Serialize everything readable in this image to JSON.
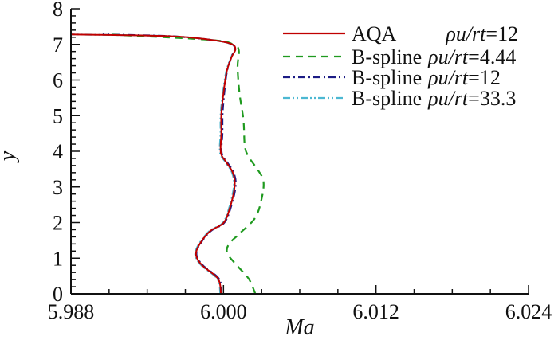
{
  "chart_data": {
    "type": "line",
    "title": "",
    "xlabel": "Ma",
    "ylabel": "y",
    "xlim": [
      5.988,
      6.024
    ],
    "ylim": [
      0,
      8
    ],
    "xticks": [
      "5.988",
      "6.000",
      "6.012",
      "6.024"
    ],
    "xtick_values": [
      5.988,
      6.0,
      6.012,
      6.024
    ],
    "yticks": [
      "0",
      "1",
      "2",
      "3",
      "4",
      "5",
      "6",
      "7",
      "8"
    ],
    "grid": false,
    "legend_position": "top-right",
    "series": [
      {
        "name": "AQA",
        "param_symbol": "ρu/rt",
        "param_value": "12",
        "color": "#c00000",
        "style": "solid",
        "x": [
          5.9998,
          5.99958,
          5.99832,
          5.99784,
          5.99812,
          5.99895,
          6.0,
          6.00052,
          6.00088,
          6.00073,
          6.00021,
          5.99979,
          5.99983,
          5.99983,
          6.0,
          6.00025,
          6.00063,
          6.00094,
          6.00063,
          5.99916,
          5.99581,
          5.988
        ],
        "y": [
          0,
          0.42,
          0.8,
          1.09,
          1.39,
          1.76,
          1.99,
          2.43,
          3.03,
          3.4,
          3.7,
          3.96,
          4.52,
          5.04,
          5.63,
          6.23,
          6.64,
          6.86,
          7.01,
          7.12,
          7.23,
          7.28
        ]
      },
      {
        "name": "B-spline",
        "param_symbol": "ρu/rt",
        "param_value": "4.44",
        "color": "#1f9a1f",
        "style": "dashed",
        "x": [
          6.00251,
          6.00199,
          6.00105,
          6.00031,
          6.00042,
          6.00126,
          6.00251,
          6.00304,
          6.00314,
          6.00272,
          6.00199,
          6.00168,
          6.00157,
          6.00126,
          6.00111,
          6.00121,
          6.00084,
          5.99916,
          5.9908
        ],
        "y": [
          0,
          0.42,
          0.8,
          1.13,
          1.39,
          1.69,
          2.14,
          2.73,
          3.17,
          3.47,
          3.84,
          4.14,
          4.88,
          5.63,
          6.37,
          6.82,
          6.97,
          7.12,
          7.28
        ]
      },
      {
        "name": "B-spline",
        "param_symbol": "ρu/rt",
        "param_value": "12",
        "color": "#1c1c85",
        "style": "dashdot",
        "x": [
          5.99985,
          5.99965,
          5.99838,
          5.99788,
          5.99815,
          5.99899,
          6.00005,
          6.00058,
          6.00096,
          6.0008,
          6.00028,
          5.99986,
          5.99992,
          5.99993,
          6.00006,
          6.00027,
          6.00062,
          6.00088,
          6.00063,
          5.99916,
          5.99581,
          5.9905
        ],
        "y": [
          0,
          0.42,
          0.8,
          1.09,
          1.39,
          1.76,
          1.99,
          2.43,
          3.03,
          3.4,
          3.7,
          3.96,
          4.52,
          5.04,
          5.63,
          6.23,
          6.64,
          6.86,
          7.01,
          7.12,
          7.23,
          7.28
        ]
      },
      {
        "name": "B-spline",
        "param_symbol": "ρu/rt",
        "param_value": "33.3",
        "color": "#4cb8d2",
        "style": "dashdotdot",
        "x": [
          5.99975,
          5.99952,
          5.99826,
          5.99778,
          5.99806,
          5.99889,
          5.99994,
          6.00046,
          6.00082,
          6.00067,
          6.00015,
          5.99973,
          5.99977,
          5.99978,
          5.99995,
          6.00021,
          6.0006,
          6.00088,
          6.0006,
          5.99916,
          5.99581,
          5.988
        ],
        "y": [
          0,
          0.42,
          0.8,
          1.09,
          1.39,
          1.76,
          1.99,
          2.43,
          3.03,
          3.4,
          3.7,
          3.96,
          4.52,
          5.04,
          5.63,
          6.23,
          6.64,
          6.86,
          7.01,
          7.12,
          7.23,
          7.28
        ]
      }
    ]
  }
}
